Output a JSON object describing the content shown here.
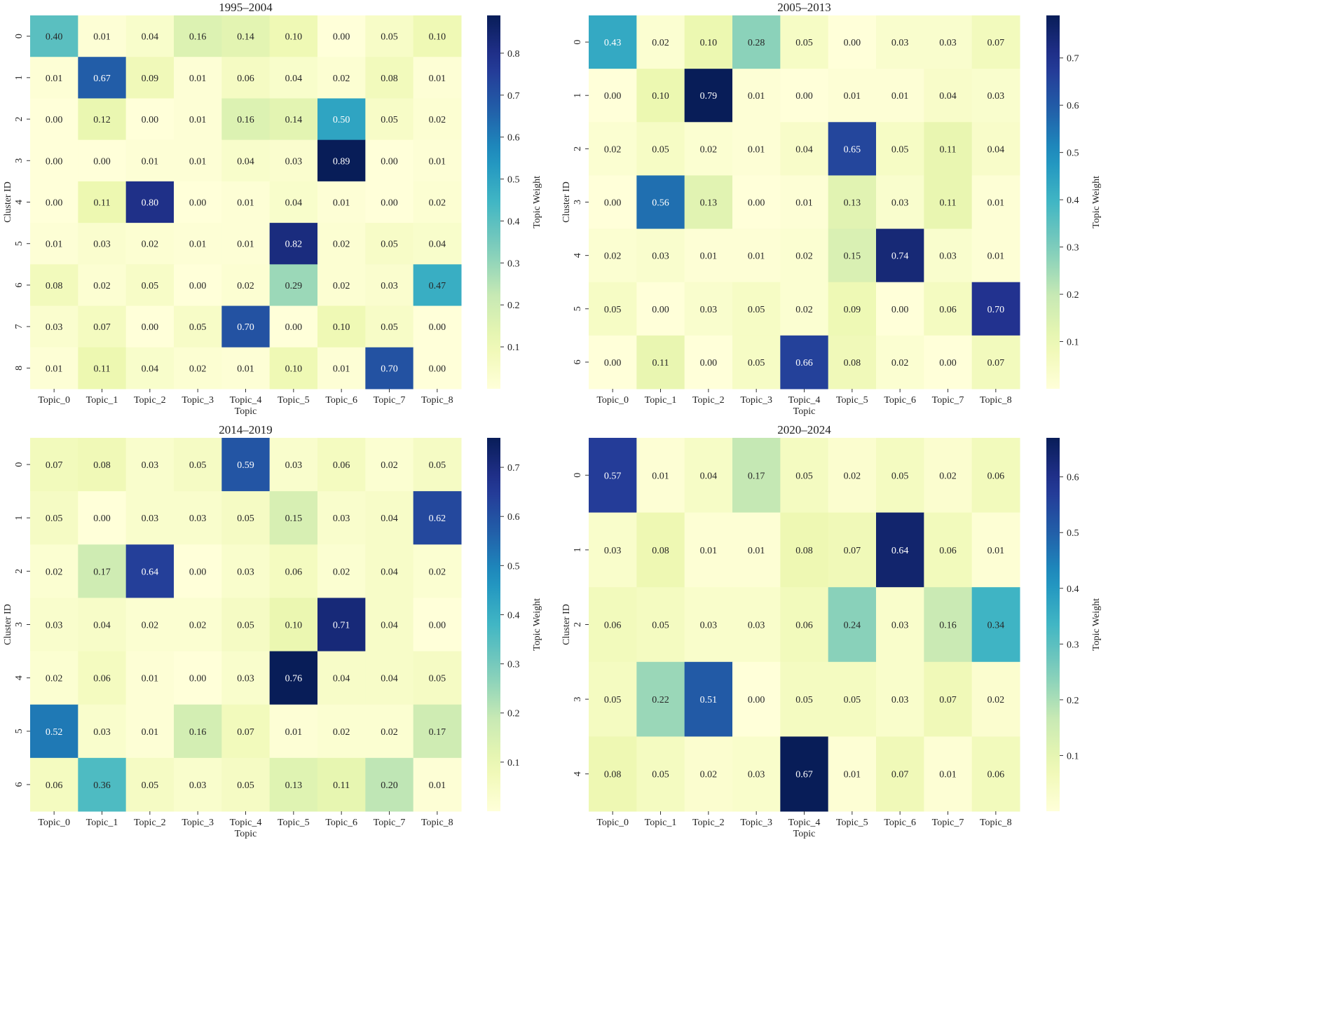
{
  "chart_data": [
    {
      "type": "heatmap",
      "title": "1995–2004",
      "xlabel": "Topic",
      "ylabel": "Cluster ID",
      "colorbar_label": "Topic Weight",
      "colormap": "YlGnBu",
      "x_categories": [
        "Topic_0",
        "Topic_1",
        "Topic_2",
        "Topic_3",
        "Topic_4",
        "Topic_5",
        "Topic_6",
        "Topic_7",
        "Topic_8"
      ],
      "y_categories": [
        "0",
        "1",
        "2",
        "3",
        "4",
        "5",
        "6",
        "7",
        "8"
      ],
      "values": [
        [
          0.4,
          0.01,
          0.04,
          0.16,
          0.14,
          0.1,
          0.0,
          0.05,
          0.1
        ],
        [
          0.01,
          0.67,
          0.09,
          0.01,
          0.06,
          0.04,
          0.02,
          0.08,
          0.01
        ],
        [
          0.0,
          0.12,
          0.0,
          0.01,
          0.16,
          0.14,
          0.5,
          0.05,
          0.02
        ],
        [
          0.0,
          0.0,
          0.01,
          0.01,
          0.04,
          0.03,
          0.89,
          0.0,
          0.01
        ],
        [
          0.0,
          0.11,
          0.8,
          0.0,
          0.01,
          0.04,
          0.01,
          0.0,
          0.02
        ],
        [
          0.01,
          0.03,
          0.02,
          0.01,
          0.01,
          0.82,
          0.02,
          0.05,
          0.04
        ],
        [
          0.08,
          0.02,
          0.05,
          0.0,
          0.02,
          0.29,
          0.02,
          0.03,
          0.47
        ],
        [
          0.03,
          0.07,
          0.0,
          0.05,
          0.7,
          0.0,
          0.1,
          0.05,
          0.0
        ],
        [
          0.01,
          0.11,
          0.04,
          0.02,
          0.01,
          0.1,
          0.01,
          0.7,
          0.0
        ]
      ],
      "vmin": 0.0,
      "vmax": 0.89,
      "colorbar_ticks": [
        "0.1",
        "0.2",
        "0.3",
        "0.4",
        "0.5",
        "0.6",
        "0.7",
        "0.8"
      ]
    },
    {
      "type": "heatmap",
      "title": "2005–2013",
      "xlabel": "Topic",
      "ylabel": "Cluster ID",
      "colorbar_label": "Topic Weight",
      "colormap": "YlGnBu",
      "x_categories": [
        "Topic_0",
        "Topic_1",
        "Topic_2",
        "Topic_3",
        "Topic_4",
        "Topic_5",
        "Topic_6",
        "Topic_7",
        "Topic_8"
      ],
      "y_categories": [
        "0",
        "1",
        "2",
        "3",
        "4",
        "5",
        "6"
      ],
      "values": [
        [
          0.43,
          0.02,
          0.1,
          0.28,
          0.05,
          0.0,
          0.03,
          0.03,
          0.07
        ],
        [
          0.0,
          0.1,
          0.79,
          0.01,
          0.0,
          0.01,
          0.01,
          0.04,
          0.03
        ],
        [
          0.02,
          0.05,
          0.02,
          0.01,
          0.04,
          0.65,
          0.05,
          0.11,
          0.04
        ],
        [
          0.0,
          0.56,
          0.13,
          0.0,
          0.01,
          0.13,
          0.03,
          0.11,
          0.01
        ],
        [
          0.02,
          0.03,
          0.01,
          0.01,
          0.02,
          0.15,
          0.74,
          0.03,
          0.01
        ],
        [
          0.05,
          0.0,
          0.03,
          0.05,
          0.02,
          0.09,
          0.0,
          0.06,
          0.7
        ],
        [
          0.0,
          0.11,
          0.0,
          0.05,
          0.66,
          0.08,
          0.02,
          0.0,
          0.07
        ]
      ],
      "vmin": 0.0,
      "vmax": 0.79,
      "colorbar_ticks": [
        "0.1",
        "0.2",
        "0.3",
        "0.4",
        "0.5",
        "0.6",
        "0.7"
      ]
    },
    {
      "type": "heatmap",
      "title": "2014–2019",
      "xlabel": "Topic",
      "ylabel": "Cluster ID",
      "colorbar_label": "Topic Weight",
      "colormap": "YlGnBu",
      "x_categories": [
        "Topic_0",
        "Topic_1",
        "Topic_2",
        "Topic_3",
        "Topic_4",
        "Topic_5",
        "Topic_6",
        "Topic_7",
        "Topic_8"
      ],
      "y_categories": [
        "0",
        "1",
        "2",
        "3",
        "4",
        "5",
        "6"
      ],
      "values": [
        [
          0.07,
          0.08,
          0.03,
          0.05,
          0.59,
          0.03,
          0.06,
          0.02,
          0.05
        ],
        [
          0.05,
          0.0,
          0.03,
          0.03,
          0.05,
          0.15,
          0.03,
          0.04,
          0.62
        ],
        [
          0.02,
          0.17,
          0.64,
          0.0,
          0.03,
          0.06,
          0.02,
          0.04,
          0.02
        ],
        [
          0.03,
          0.04,
          0.02,
          0.02,
          0.05,
          0.1,
          0.71,
          0.04,
          0.0
        ],
        [
          0.02,
          0.06,
          0.01,
          0.0,
          0.03,
          0.76,
          0.04,
          0.04,
          0.05
        ],
        [
          0.52,
          0.03,
          0.01,
          0.16,
          0.07,
          0.01,
          0.02,
          0.02,
          0.17
        ],
        [
          0.06,
          0.36,
          0.05,
          0.03,
          0.05,
          0.13,
          0.11,
          0.2,
          0.01
        ]
      ],
      "vmin": 0.0,
      "vmax": 0.76,
      "colorbar_ticks": [
        "0.1",
        "0.2",
        "0.3",
        "0.4",
        "0.5",
        "0.6",
        "0.7"
      ]
    },
    {
      "type": "heatmap",
      "title": "2020–2024",
      "xlabel": "Topic",
      "ylabel": "Cluster ID",
      "colorbar_label": "Topic Weight",
      "colormap": "YlGnBu",
      "x_categories": [
        "Topic_0",
        "Topic_1",
        "Topic_2",
        "Topic_3",
        "Topic_4",
        "Topic_5",
        "Topic_6",
        "Topic_7",
        "Topic_8"
      ],
      "y_categories": [
        "0",
        "1",
        "2",
        "3",
        "4"
      ],
      "values": [
        [
          0.57,
          0.01,
          0.04,
          0.17,
          0.05,
          0.02,
          0.05,
          0.02,
          0.06
        ],
        [
          0.03,
          0.08,
          0.01,
          0.01,
          0.08,
          0.07,
          0.64,
          0.06,
          0.01
        ],
        [
          0.06,
          0.05,
          0.03,
          0.03,
          0.06,
          0.24,
          0.03,
          0.16,
          0.34
        ],
        [
          0.05,
          0.22,
          0.51,
          0.0,
          0.05,
          0.05,
          0.03,
          0.07,
          0.02
        ],
        [
          0.08,
          0.05,
          0.02,
          0.03,
          0.67,
          0.01,
          0.07,
          0.01,
          0.06
        ]
      ],
      "vmin": 0.0,
      "vmax": 0.67,
      "colorbar_ticks": [
        "0.1",
        "0.2",
        "0.3",
        "0.4",
        "0.5",
        "0.6"
      ]
    }
  ]
}
